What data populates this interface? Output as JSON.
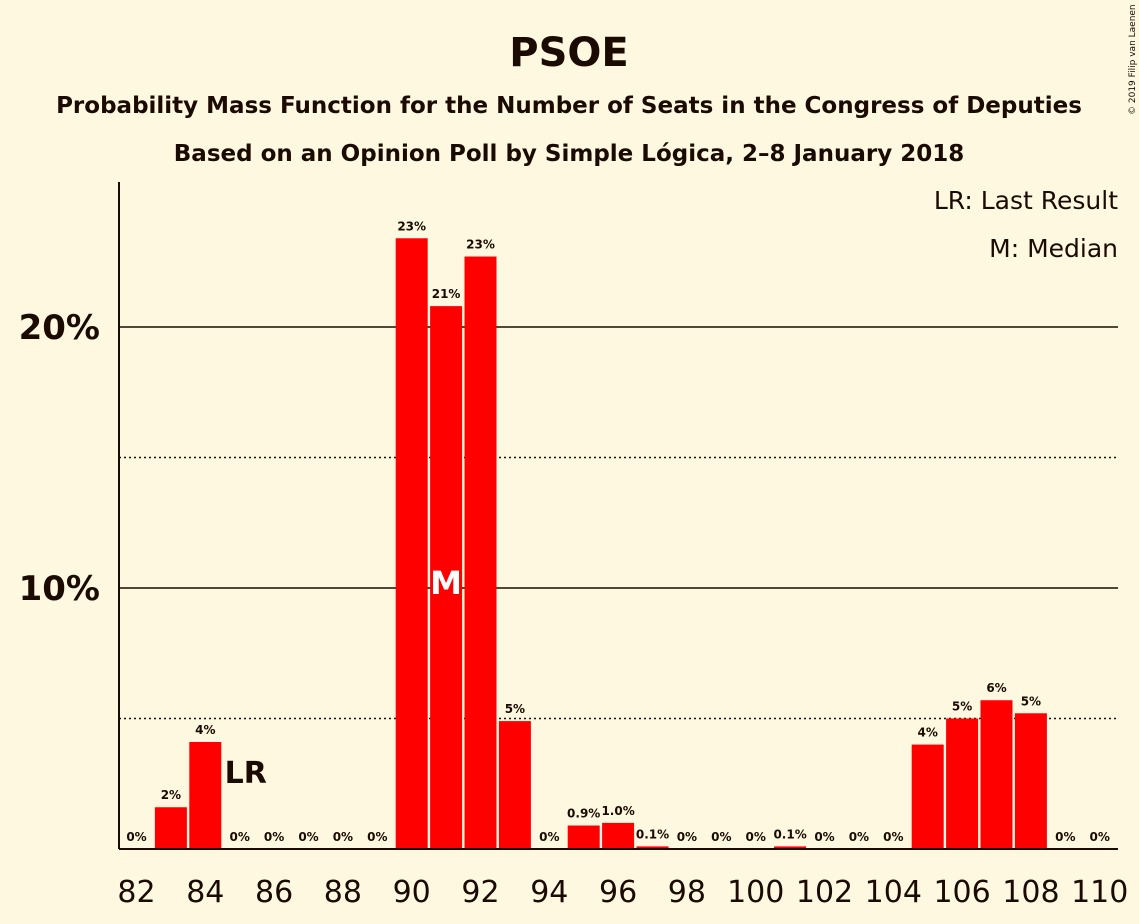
{
  "chart_data": {
    "type": "bar",
    "title": "PSOE",
    "subtitle": "Probability Mass Function for the Number of Seats in the Congress of Deputies",
    "subtitle2": "Based on an Opinion Poll by Simple Lógica, 2–8 January 2018",
    "credit": "© 2019 Filip van Laenen",
    "legend": [
      "LR: Last Result",
      "M: Median"
    ],
    "legend_position": "top-right",
    "ylim": [
      0,
      25.5
    ],
    "yticks": [
      {
        "value": 10,
        "label": "10%",
        "style": "solid"
      },
      {
        "value": 20,
        "label": "20%",
        "style": "solid"
      }
    ],
    "dotted_gridlines": [
      5,
      15
    ],
    "xtick_labels": [
      "82",
      "84",
      "86",
      "88",
      "90",
      "92",
      "94",
      "96",
      "98",
      "100",
      "102",
      "104",
      "106",
      "108",
      "110"
    ],
    "categories": [
      82,
      83,
      84,
      85,
      86,
      87,
      88,
      89,
      90,
      91,
      92,
      93,
      94,
      95,
      96,
      97,
      98,
      99,
      100,
      101,
      102,
      103,
      104,
      105,
      106,
      107,
      108,
      109,
      110
    ],
    "values": [
      0,
      1.6,
      4.1,
      0,
      0,
      0,
      0,
      0,
      23.4,
      20.8,
      22.7,
      4.9,
      0,
      0.9,
      1.0,
      0.1,
      0,
      0,
      0,
      0.1,
      0,
      0,
      0,
      4.0,
      5.0,
      5.7,
      5.2,
      0,
      0
    ],
    "labels": [
      "0%",
      "2%",
      "4%",
      "0%",
      "0%",
      "0%",
      "0%",
      "0%",
      "23%",
      "21%",
      "23%",
      "5%",
      "0%",
      "0.9%",
      "1.0%",
      "0.1%",
      "0%",
      "0%",
      "0%",
      "0.1%",
      "0%",
      "0%",
      "0%",
      "4%",
      "5%",
      "6%",
      "5%",
      "0%",
      "0%"
    ],
    "last_result": {
      "seat": 85,
      "label": "LR"
    },
    "median": {
      "seat": 91,
      "label": "M"
    },
    "colors": {
      "bar": "#ff0000",
      "background": "#fff8e1",
      "text": "#1a0a00"
    }
  }
}
